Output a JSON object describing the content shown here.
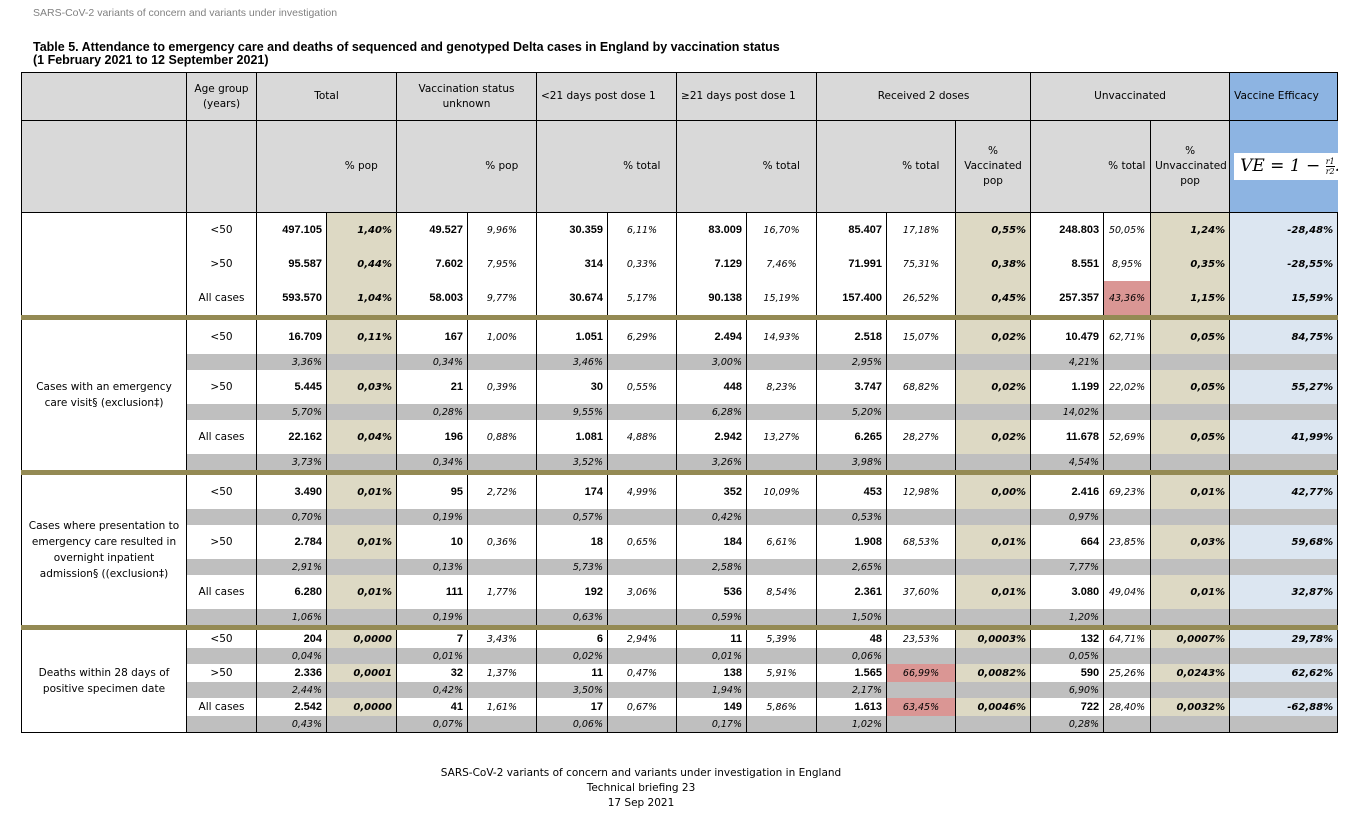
{
  "running_header": "SARS-CoV-2 variants of concern and variants under investigation",
  "title_line1": "Table 5. Attendance to emergency care and deaths of sequenced and genotyped Delta cases in England by vaccination status",
  "title_line2": "(1 February 2021 to 12 September 2021)",
  "headers": {
    "age": "Age group (years)",
    "total": "Total",
    "unknown": "Vaccination status unknown",
    "lt21": "<21 days post dose 1",
    "ge21": "≥21 days post dose 1",
    "dose2": "Received 2 doses",
    "unvac": "Unvaccinated",
    "ve": "Vaccine Efficacy",
    "pct_pop": "% pop",
    "pct_total": "% total",
    "pct_vac_pop": "% Vaccinated pop",
    "pct_unvac_pop": "% Unvaccinated pop",
    "formula_lhs": "VE = 1 − ",
    "formula_num": "r1",
    "formula_den": "r2",
    "formula_end": "."
  },
  "sections": [
    {
      "label": "",
      "rows": [
        {
          "age": "<50",
          "cells": [
            "497.105",
            "1,40%",
            "49.527",
            "9,96%",
            "30.359",
            "6,11%",
            "83.009",
            "16,70%",
            "85.407",
            "17,18%",
            "0,55%",
            "248.803",
            "50,05%",
            "1,24%",
            "-28,48%"
          ],
          "share": null
        },
        {
          "age": ">50",
          "cells": [
            "95.587",
            "0,44%",
            "7.602",
            "7,95%",
            "314",
            "0,33%",
            "7.129",
            "7,46%",
            "71.991",
            "75,31%",
            "0,38%",
            "8.551",
            "8,95%",
            "0,35%",
            "-28,55%"
          ],
          "share": null
        },
        {
          "age": "All cases",
          "cells": [
            "593.570",
            "1,04%",
            "58.003",
            "9,77%",
            "30.674",
            "5,17%",
            "90.138",
            "15,19%",
            "157.400",
            "26,52%",
            "0,45%",
            "257.357",
            "43,36%",
            "1,15%",
            "15,59%"
          ],
          "share": null,
          "highlight": [
            12
          ]
        }
      ]
    },
    {
      "label": "Cases with an emergency care visit§ (exclusion‡)",
      "rows": [
        {
          "age": "<50",
          "cells": [
            "16.709",
            "0,11%",
            "167",
            "1,00%",
            "1.051",
            "6,29%",
            "2.494",
            "14,93%",
            "2.518",
            "15,07%",
            "0,02%",
            "10.479",
            "62,71%",
            "0,05%",
            "84,75%"
          ],
          "share": [
            "3,36%",
            "0,34%",
            "3,46%",
            "3,00%",
            "2,95%",
            "4,21%"
          ]
        },
        {
          "age": ">50",
          "cells": [
            "5.445",
            "0,03%",
            "21",
            "0,39%",
            "30",
            "0,55%",
            "448",
            "8,23%",
            "3.747",
            "68,82%",
            "0,02%",
            "1.199",
            "22,02%",
            "0,05%",
            "55,27%"
          ],
          "share": [
            "5,70%",
            "0,28%",
            "9,55%",
            "6,28%",
            "5,20%",
            "14,02%"
          ]
        },
        {
          "age": "All cases",
          "cells": [
            "22.162",
            "0,04%",
            "196",
            "0,88%",
            "1.081",
            "4,88%",
            "2.942",
            "13,27%",
            "6.265",
            "28,27%",
            "0,02%",
            "11.678",
            "52,69%",
            "0,05%",
            "41,99%"
          ],
          "share": [
            "3,73%",
            "0,34%",
            "3,52%",
            "3,26%",
            "3,98%",
            "4,54%"
          ]
        }
      ]
    },
    {
      "label": "Cases where presentation to emergency care resulted in overnight inpatient admission§ ((exclusion‡)",
      "rows": [
        {
          "age": "<50",
          "cells": [
            "3.490",
            "0,01%",
            "95",
            "2,72%",
            "174",
            "4,99%",
            "352",
            "10,09%",
            "453",
            "12,98%",
            "0,00%",
            "2.416",
            "69,23%",
            "0,01%",
            "42,77%"
          ],
          "share": [
            "0,70%",
            "0,19%",
            "0,57%",
            "0,42%",
            "0,53%",
            "0,97%"
          ]
        },
        {
          "age": ">50",
          "cells": [
            "2.784",
            "0,01%",
            "10",
            "0,36%",
            "18",
            "0,65%",
            "184",
            "6,61%",
            "1.908",
            "68,53%",
            "0,01%",
            "664",
            "23,85%",
            "0,03%",
            "59,68%"
          ],
          "share": [
            "2,91%",
            "0,13%",
            "5,73%",
            "2,58%",
            "2,65%",
            "7,77%"
          ]
        },
        {
          "age": "All cases",
          "cells": [
            "6.280",
            "0,01%",
            "111",
            "1,77%",
            "192",
            "3,06%",
            "536",
            "8,54%",
            "2.361",
            "37,60%",
            "0,01%",
            "3.080",
            "49,04%",
            "0,01%",
            "32,87%"
          ],
          "share": [
            "1,06%",
            "0,19%",
            "0,63%",
            "0,59%",
            "1,50%",
            "1,20%"
          ]
        }
      ]
    },
    {
      "label": "Deaths within 28 days of positive specimen date",
      "compact": true,
      "rows": [
        {
          "age": "<50",
          "cells": [
            "204",
            "0,0000",
            "7",
            "3,43%",
            "6",
            "2,94%",
            "11",
            "5,39%",
            "48",
            "23,53%",
            "0,0003%",
            "132",
            "64,71%",
            "0,0007%",
            "29,78%"
          ],
          "share": [
            "0,04%",
            "0,01%",
            "0,02%",
            "0,01%",
            "0,06%",
            "0,05%"
          ]
        },
        {
          "age": ">50",
          "cells": [
            "2.336",
            "0,0001",
            "32",
            "1,37%",
            "11",
            "0,47%",
            "138",
            "5,91%",
            "1.565",
            "66,99%",
            "0,0082%",
            "590",
            "25,26%",
            "0,0243%",
            "62,62%"
          ],
          "share": [
            "2,44%",
            "0,42%",
            "3,50%",
            "1,94%",
            "2,17%",
            "6,90%"
          ],
          "highlight": [
            9
          ]
        },
        {
          "age": "All cases",
          "cells": [
            "2.542",
            "0,0000",
            "41",
            "1,61%",
            "17",
            "0,67%",
            "149",
            "5,86%",
            "1.613",
            "63,45%",
            "0,0046%",
            "722",
            "28,40%",
            "0,0032%",
            "-62,88%"
          ],
          "share": [
            "0,43%",
            "0,07%",
            "0,06%",
            "0,17%",
            "1,02%",
            "0,28%"
          ],
          "highlight": [
            9
          ]
        }
      ]
    }
  ],
  "footer": {
    "line1": "SARS-CoV-2 variants of concern and variants under investigation in England",
    "line2": "Technical briefing 23",
    "line3": "17 Sep 2021"
  },
  "colors": {
    "tan": "#ddd9c4",
    "ve": "#dce6f1",
    "ve_header": "#8db4e2",
    "grey": "#bfbfbf",
    "highlight": "#da9694",
    "separator": "#948a54"
  }
}
